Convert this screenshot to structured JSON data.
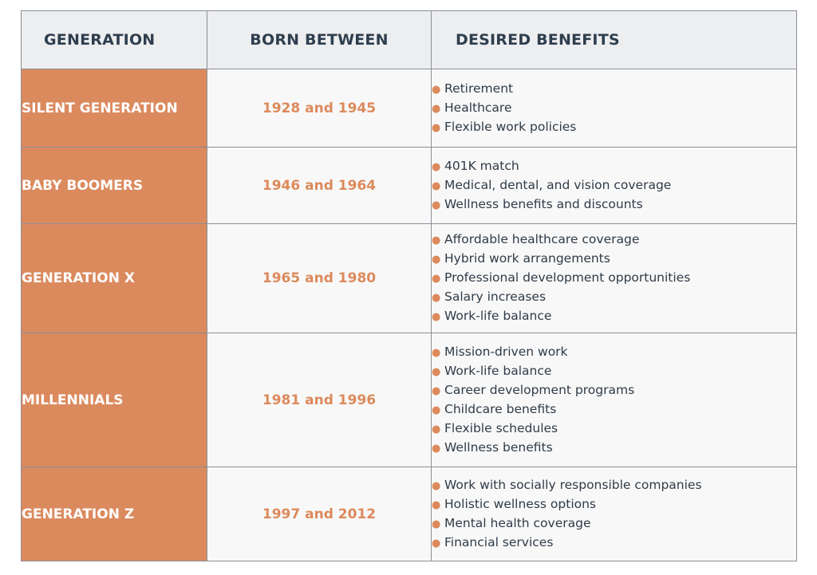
{
  "header": {
    "generation": "GENERATION",
    "born_between": "BORN BETWEEN",
    "desired_benefits": "DESIRED BENEFITS"
  },
  "colors": {
    "accent": "#db8a5e",
    "header_bg": "#edeef0",
    "header_text": "#2e3e4e",
    "cell_bg": "#f8f8f8"
  },
  "rows": [
    {
      "generation": "SILENT GENERATION",
      "born": "1928 and 1945",
      "benefits": [
        "Retirement",
        "Healthcare",
        "Flexible work policies"
      ]
    },
    {
      "generation": "BABY BOOMERS",
      "born": "1946 and 1964",
      "benefits": [
        "401K match",
        "Medical, dental, and vision coverage",
        "Wellness benefits and discounts"
      ]
    },
    {
      "generation": "GENERATION X",
      "born": "1965 and 1980",
      "benefits": [
        "Affordable healthcare coverage",
        "Hybrid work arrangements",
        "Professional development opportunities",
        "Salary increases",
        "Work-life balance"
      ]
    },
    {
      "generation": "MILLENNIALS",
      "born": "1981 and 1996",
      "benefits": [
        "Mission-driven work",
        "Work-life balance",
        "Career development programs",
        "Childcare benefits",
        "Flexible schedules",
        "Wellness benefits"
      ]
    },
    {
      "generation": "GENERATION Z",
      "born": "1997 and 2012",
      "benefits": [
        "Work with socially responsible companies",
        "Holistic wellness options",
        "Mental health coverage",
        "Financial services"
      ]
    }
  ]
}
